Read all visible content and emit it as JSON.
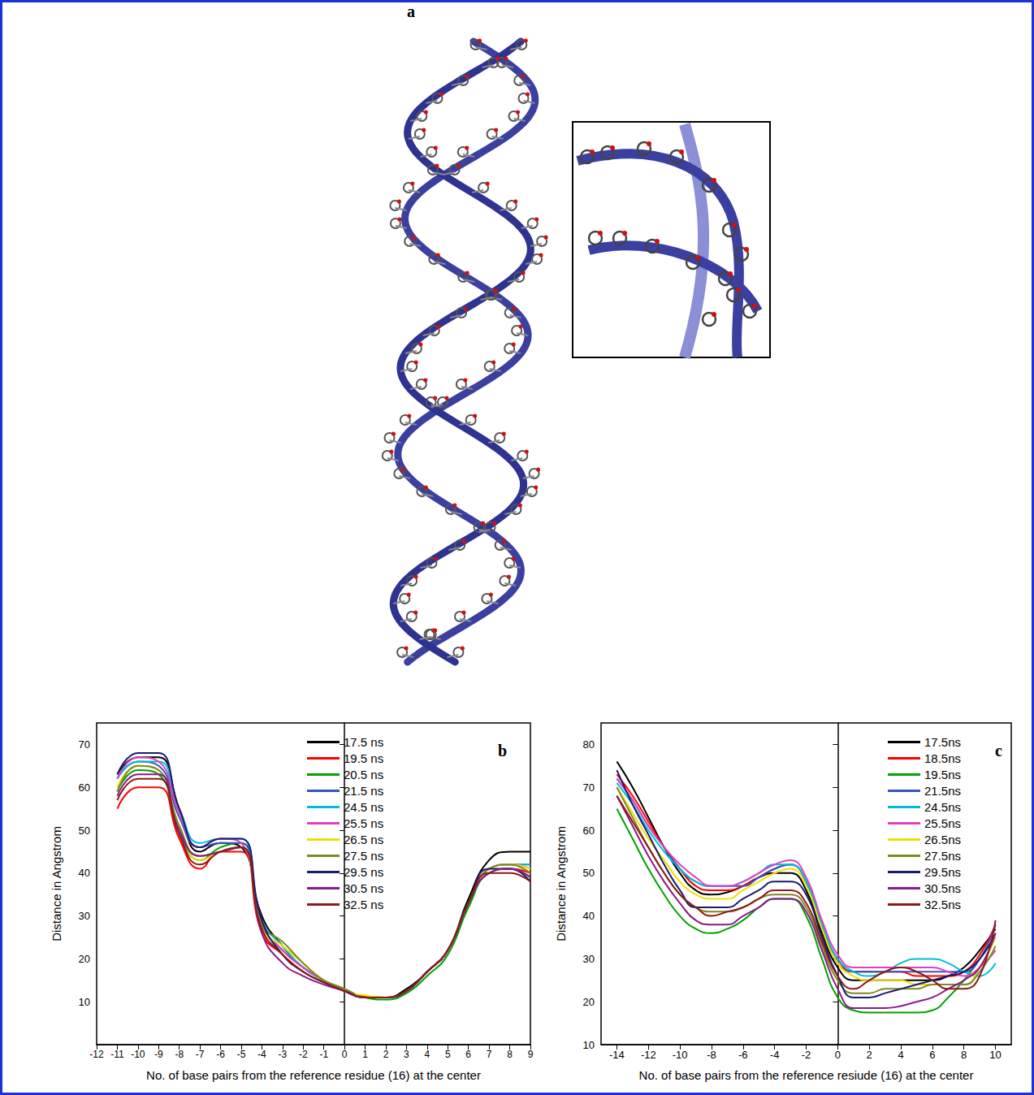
{
  "diagram": {
    "label": "a"
  },
  "chart_data": [
    {
      "type": "line",
      "title": "b",
      "xlabel": "No. of base pairs from the reference residue (16) at the center",
      "ylabel": "Distance in Angstrom",
      "x": [
        -11,
        -10,
        -9,
        -8,
        -7,
        -6,
        -5,
        -4,
        -3,
        -2,
        -1,
        0,
        1,
        2,
        3,
        4,
        5,
        6,
        7,
        8,
        9
      ],
      "xlim": [
        -12,
        9
      ],
      "xticks": [
        -12,
        -11,
        -10,
        -9,
        -8,
        -7,
        -6,
        -5,
        -4,
        -3,
        -2,
        -1,
        0,
        1,
        2,
        3,
        4,
        5,
        6,
        7,
        8,
        9
      ],
      "ylim": [
        0,
        75
      ],
      "yticks": [
        10,
        20,
        30,
        40,
        50,
        60,
        70
      ],
      "grid": false,
      "legend": "top-right",
      "series": [
        {
          "name": "17.5 ns",
          "color": "#000000",
          "values": [
            63,
            67,
            67,
            55,
            45,
            47,
            46,
            30,
            23,
            18,
            15,
            12.5,
            11,
            11,
            13,
            17,
            22,
            34,
            43,
            45,
            45
          ]
        },
        {
          "name": "19.5 ns",
          "color": "#ff0000",
          "values": [
            55,
            60,
            60,
            48,
            41,
            45,
            45,
            26,
            21,
            17,
            14.5,
            12.5,
            11.2,
            11,
            12.5,
            17,
            22,
            33,
            40,
            41,
            40
          ]
        },
        {
          "name": "20.5 ns",
          "color": "#00a000",
          "values": [
            59,
            64,
            63,
            50,
            43,
            46,
            47,
            28,
            22,
            18,
            15,
            13,
            11,
            10.5,
            12,
            16,
            21,
            32,
            40,
            41,
            39
          ]
        },
        {
          "name": "21.5 ns",
          "color": "#3355c0",
          "values": [
            62,
            66,
            65,
            53,
            46,
            47,
            47,
            28,
            22,
            18,
            15,
            12.5,
            11,
            11,
            12.5,
            17,
            22,
            33,
            41,
            42,
            42
          ]
        },
        {
          "name": "24.5 ns",
          "color": "#00bcd8",
          "values": [
            62,
            66,
            66,
            55,
            47,
            48,
            48,
            29,
            23,
            18,
            15,
            12.5,
            11,
            11,
            12.5,
            17,
            22,
            33,
            41,
            42,
            42
          ]
        },
        {
          "name": "25.5 ns",
          "color": "#e040c0",
          "values": [
            62,
            67,
            66,
            54,
            46,
            48,
            47,
            28,
            22,
            18,
            15,
            12.5,
            11,
            11,
            12.5,
            17,
            22,
            33,
            41,
            42,
            41
          ]
        },
        {
          "name": "26.5 ns",
          "color": "#f0e000",
          "values": [
            60,
            65,
            64,
            51,
            43,
            45,
            46,
            27,
            23,
            19,
            15,
            12.5,
            11.5,
            11,
            12.5,
            17,
            22,
            33,
            41,
            42,
            41
          ]
        },
        {
          "name": "27.5 ns",
          "color": "#7f8a20",
          "values": [
            59,
            65,
            64,
            51,
            44,
            45,
            46,
            28,
            24,
            19,
            15,
            13,
            11,
            11,
            12.5,
            17,
            22,
            33,
            41,
            42,
            40
          ]
        },
        {
          "name": "29.5 ns",
          "color": "#1a1a6e",
          "values": [
            63,
            68,
            68,
            55,
            46,
            48,
            48,
            29,
            21,
            17,
            14.5,
            12.5,
            11,
            11,
            12.5,
            17,
            22,
            33,
            41,
            41,
            38
          ]
        },
        {
          "name": "30.5 ns",
          "color": "#8b1a8b",
          "values": [
            58,
            63,
            63,
            50,
            44,
            45,
            46,
            26,
            19,
            16,
            14,
            12.5,
            11,
            11,
            12.5,
            17,
            22,
            33,
            40,
            41,
            39
          ]
        },
        {
          "name": "32.5 ns",
          "color": "#8b1a1a",
          "values": [
            57,
            62,
            62,
            49,
            42,
            45,
            46,
            27,
            21,
            17,
            14.5,
            12.5,
            11,
            11,
            12.5,
            17,
            22,
            33,
            40,
            40,
            38
          ]
        }
      ]
    },
    {
      "type": "line",
      "title": "c",
      "xlabel": "No. of base pairs from the reference resiude (16) at the center",
      "ylabel": "Distance in Angstrom",
      "x": [
        -14,
        -13,
        -12,
        -11,
        -10,
        -9,
        -8,
        -7,
        -6,
        -5,
        -4,
        -3,
        -2,
        -1,
        0,
        1,
        2,
        3,
        4,
        5,
        6,
        7,
        8,
        9,
        10
      ],
      "xlim": [
        -15,
        11
      ],
      "xticks": [
        -14,
        -12,
        -10,
        -8,
        -6,
        -4,
        -2,
        0,
        2,
        4,
        6,
        8,
        10
      ],
      "ylim": [
        10,
        85
      ],
      "yticks": [
        10,
        20,
        30,
        40,
        50,
        60,
        70,
        80
      ],
      "grid": false,
      "legend": "top-right",
      "series": [
        {
          "name": "17.5ns",
          "color": "#000000",
          "values": [
            76,
            70,
            63,
            56,
            50,
            46,
            45,
            45.5,
            47,
            49,
            50,
            50,
            46,
            36,
            28,
            25,
            25,
            25,
            25,
            25,
            25,
            26,
            28,
            32,
            37
          ]
        },
        {
          "name": "18.5ns",
          "color": "#ff0000",
          "values": [
            73,
            68,
            62,
            56,
            51,
            47,
            46,
            46,
            47,
            49,
            51,
            52,
            48,
            38,
            30,
            27,
            27,
            27,
            27,
            26,
            26,
            26,
            27,
            31,
            38
          ]
        },
        {
          "name": "19.5ns",
          "color": "#00a000",
          "values": [
            65,
            58,
            51,
            45,
            40,
            37,
            36,
            37,
            39,
            42,
            44,
            44,
            40,
            30,
            21,
            18,
            17.5,
            17.5,
            17.5,
            17.5,
            18,
            21,
            25,
            30,
            35
          ]
        },
        {
          "name": "21.5ns",
          "color": "#3355c0",
          "values": [
            72,
            67,
            61,
            56,
            51,
            48,
            47,
            47,
            47,
            49,
            51,
            52,
            48,
            38,
            29,
            27,
            27,
            27,
            27,
            27,
            27,
            27,
            27,
            30,
            38
          ]
        },
        {
          "name": "24.5ns",
          "color": "#00bcd8",
          "values": [
            71,
            66,
            60,
            55,
            51,
            48,
            47,
            47,
            48,
            50,
            52,
            52,
            48,
            38,
            30,
            27,
            26,
            27,
            29,
            30,
            30,
            29,
            27,
            26,
            29
          ]
        },
        {
          "name": "25.5ns",
          "color": "#e040c0",
          "values": [
            72,
            67,
            61,
            56,
            52,
            49,
            47,
            47,
            48,
            50,
            52,
            53,
            49,
            39,
            31,
            28,
            28,
            28,
            28,
            28,
            28,
            27,
            26,
            28,
            32
          ]
        },
        {
          "name": "26.5ns",
          "color": "#f0e000",
          "values": [
            70,
            64,
            58,
            53,
            48,
            45,
            44,
            44,
            46,
            48,
            50,
            51,
            47,
            37,
            29,
            26,
            25,
            25,
            25,
            24,
            24,
            24,
            24,
            28,
            35
          ]
        },
        {
          "name": "27.5ns",
          "color": "#7f8a20",
          "values": [
            70,
            63,
            56,
            50,
            45,
            42,
            41,
            41,
            42,
            44,
            45,
            45,
            42,
            33,
            25,
            22,
            22,
            23,
            23,
            23,
            24,
            24,
            24,
            27,
            33
          ]
        },
        {
          "name": "29.5ns",
          "color": "#1a1a6e",
          "values": [
            74,
            66,
            59,
            52,
            46,
            42,
            42,
            42,
            44,
            46,
            48,
            48,
            45,
            35,
            26,
            21,
            21,
            22,
            23,
            24,
            25,
            26,
            27,
            30,
            36
          ]
        },
        {
          "name": "30.5ns",
          "color": "#8b1a8b",
          "values": [
            68,
            61,
            54,
            48,
            43,
            39,
            38,
            38,
            40,
            42,
            44,
            44,
            41,
            32,
            23,
            18.5,
            18.5,
            18.5,
            19,
            20,
            21,
            23,
            25,
            28,
            36
          ]
        },
        {
          "name": "32.5ns",
          "color": "#8b1a1a",
          "values": [
            68,
            62,
            56,
            50,
            45,
            42,
            40,
            41,
            42,
            44,
            46,
            46,
            43,
            34,
            26,
            23,
            25,
            27,
            28,
            27,
            25,
            23,
            23,
            26,
            39
          ]
        }
      ]
    }
  ]
}
